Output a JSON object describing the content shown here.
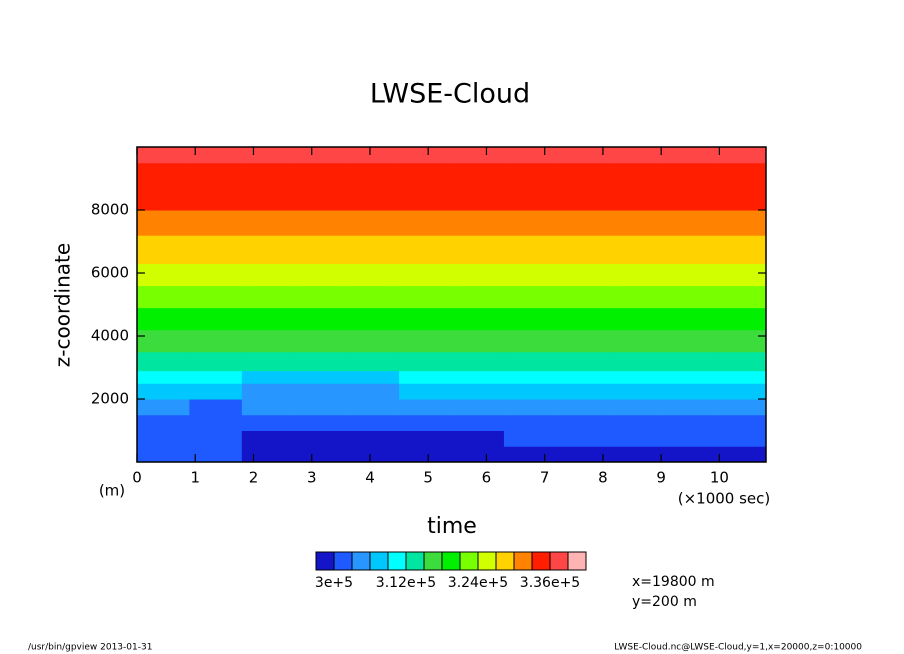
{
  "chart_data": {
    "type": "contour",
    "title": "LWSE-Cloud",
    "x_label": "time",
    "x_units": "(×1000 sec)",
    "y_label": "z-coordinate",
    "y_units": "(m)",
    "x": [
      0,
      0.9,
      1.8,
      2.7,
      3.6,
      4.5,
      5.4,
      6.3,
      7.2,
      8.1,
      9.0,
      9.9,
      10.8
    ],
    "z": [
      0,
      500,
      1000,
      1500,
      2000,
      2500,
      2900,
      3500,
      4200,
      4900,
      5600,
      6300,
      7200,
      8000,
      9500,
      10000
    ],
    "values": [
      [
        301500,
        301500,
        298500,
        298500,
        298500,
        298500,
        298500,
        298500,
        298500,
        298500,
        298500,
        298500
      ],
      [
        301500,
        301500,
        298500,
        298500,
        298500,
        298500,
        298500,
        301500,
        301500,
        301500,
        301500,
        301500
      ],
      [
        301500,
        301500,
        301500,
        301500,
        301500,
        301500,
        301500,
        301500,
        301500,
        301500,
        301500,
        301500
      ],
      [
        304500,
        301500,
        304500,
        304500,
        304500,
        304500,
        304500,
        304500,
        304500,
        304500,
        304500,
        304500
      ],
      [
        307500,
        307500,
        304500,
        304500,
        304500,
        307500,
        307500,
        307500,
        307500,
        307500,
        307500,
        307500
      ],
      [
        310500,
        310500,
        307500,
        307500,
        307500,
        310500,
        310500,
        310500,
        310500,
        310500,
        310500,
        310500
      ],
      [
        313500,
        313500,
        313500,
        313500,
        313500,
        313500,
        313500,
        313500,
        313500,
        313500,
        313500,
        313500
      ],
      [
        316500,
        316500,
        316500,
        316500,
        316500,
        316500,
        316500,
        316500,
        316500,
        316500,
        316500,
        316500
      ],
      [
        319500,
        319500,
        319500,
        319500,
        319500,
        319500,
        319500,
        319500,
        319500,
        319500,
        319500,
        319500
      ],
      [
        322500,
        322500,
        322500,
        322500,
        322500,
        322500,
        322500,
        322500,
        322500,
        322500,
        322500,
        322500
      ],
      [
        325500,
        325500,
        325500,
        325500,
        325500,
        325500,
        325500,
        325500,
        325500,
        325500,
        325500,
        325500
      ],
      [
        328500,
        328500,
        328500,
        328500,
        328500,
        328500,
        328500,
        328500,
        328500,
        328500,
        328500,
        328500
      ],
      [
        331500,
        331500,
        331500,
        331500,
        331500,
        331500,
        331500,
        331500,
        331500,
        331500,
        331500,
        331500
      ],
      [
        334500,
        334500,
        334500,
        334500,
        334500,
        334500,
        334500,
        334500,
        334500,
        334500,
        334500,
        334500
      ],
      [
        337500,
        337500,
        337500,
        337500,
        337500,
        337500,
        337500,
        337500,
        337500,
        337500,
        337500,
        337500
      ]
    ],
    "levels": [
      297000,
      300000,
      303000,
      306000,
      309000,
      312000,
      315000,
      318000,
      321000,
      324000,
      327000,
      330000,
      333000,
      336000,
      339000,
      342000
    ],
    "colors": [
      "#1414c8",
      "#1e5aff",
      "#2896ff",
      "#00c8ff",
      "#00ffff",
      "#00e6a0",
      "#3cdc3c",
      "#00f000",
      "#78ff00",
      "#d2ff00",
      "#ffd200",
      "#ff8200",
      "#ff1e00",
      "#ff4646",
      "#ffb4b4"
    ],
    "colorbar_ticks": [
      {
        "value": 300000,
        "label": "3e+5"
      },
      {
        "value": 312000,
        "label": "3.12e+5"
      },
      {
        "value": 324000,
        "label": "3.24e+5"
      },
      {
        "value": 336000,
        "label": "3.36e+5"
      }
    ],
    "xlim": [
      0,
      10.8
    ],
    "ylim": [
      0,
      10000
    ],
    "xticks": [
      0,
      1,
      2,
      3,
      4,
      5,
      6,
      7,
      8,
      9,
      10
    ],
    "yticks": [
      2000,
      4000,
      6000,
      8000
    ],
    "annotations": [
      "x=19800 m",
      "y=200 m"
    ],
    "footer_left": "/usr/bin/gpview  2013-01-31",
    "footer_right": "LWSE-Cloud.nc@LWSE-Cloud,y=1,x=20000,z=0:10000"
  }
}
